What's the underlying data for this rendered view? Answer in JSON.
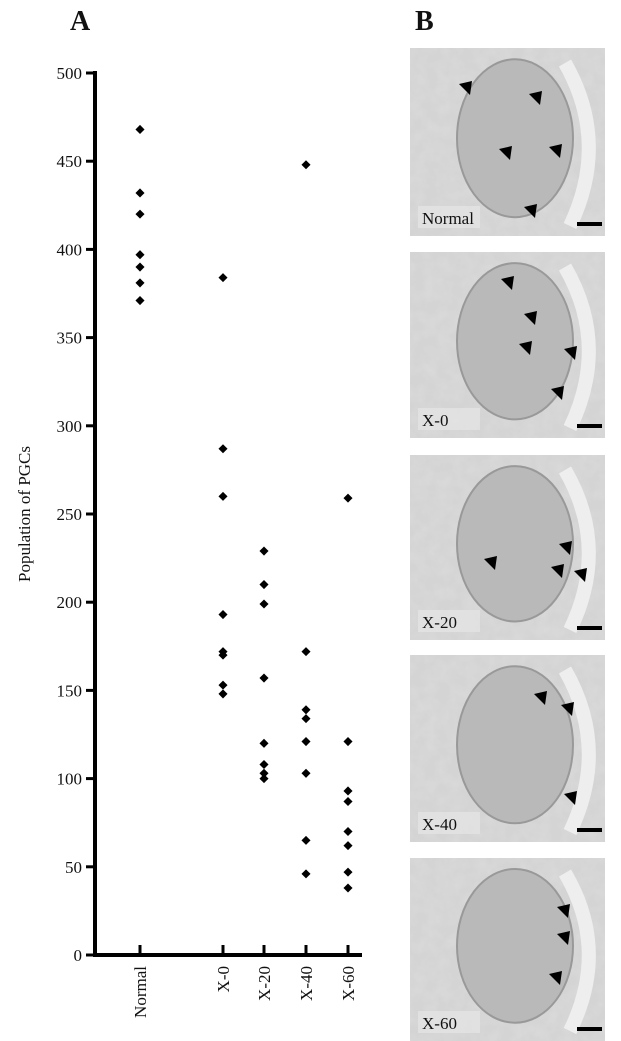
{
  "chart_data": {
    "type": "strip",
    "panel_label": "A",
    "ylabel": "Population of PGCs",
    "categories": [
      "Normal",
      "X-0",
      "X-20",
      "X-40",
      "X-60"
    ],
    "values": [
      [
        468,
        432,
        420,
        397,
        390,
        381,
        371
      ],
      [
        384,
        287,
        260,
        193,
        172,
        170,
        153,
        148
      ],
      [
        229,
        210,
        199,
        157,
        120,
        108,
        103,
        100
      ],
      [
        448,
        172,
        139,
        134,
        121,
        103,
        65,
        46
      ],
      [
        259,
        121,
        93,
        87,
        70,
        62,
        47,
        38
      ]
    ],
    "color": "#000000",
    "ylim": [
      0,
      500
    ],
    "yticks": [
      0,
      50,
      100,
      150,
      200,
      250,
      300,
      350,
      400,
      450,
      500
    ]
  },
  "panel_b": {
    "label": "B",
    "images": [
      {
        "label": "Normal"
      },
      {
        "label": "X-0"
      },
      {
        "label": "X-20"
      },
      {
        "label": "X-40"
      },
      {
        "label": "X-60"
      }
    ]
  }
}
